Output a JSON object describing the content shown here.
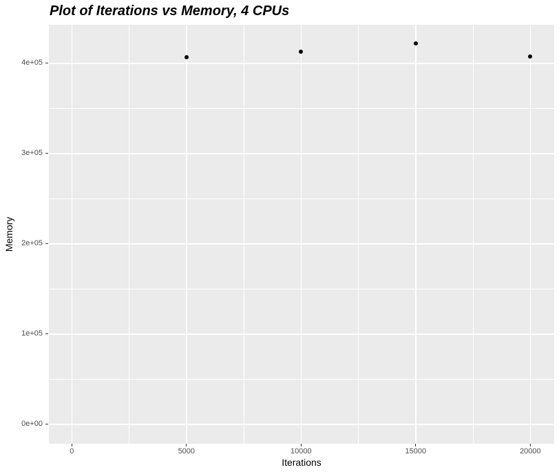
{
  "chart_data": {
    "type": "scatter",
    "title": "Plot of Iterations vs Memory, 4 CPUs",
    "xlabel": "Iterations",
    "ylabel": "Memory",
    "x_ticks": [
      {
        "value": 0,
        "label": "0"
      },
      {
        "value": 5000,
        "label": "5000"
      },
      {
        "value": 10000,
        "label": "10000"
      },
      {
        "value": 15000,
        "label": "15000"
      },
      {
        "value": 20000,
        "label": "20000"
      }
    ],
    "y_ticks": [
      {
        "value": 0,
        "label": "0e+00"
      },
      {
        "value": 100000,
        "label": "1e+05"
      },
      {
        "value": 200000,
        "label": "2e+05"
      },
      {
        "value": 300000,
        "label": "3e+05"
      },
      {
        "value": 400000,
        "label": "4e+05"
      }
    ],
    "x_minor_ticks": [
      2500,
      7500,
      12500,
      17500
    ],
    "y_minor_ticks": [
      50000,
      150000,
      250000,
      350000
    ],
    "xlim": [
      -1000,
      21040
    ],
    "ylim": [
      -21400,
      442700
    ],
    "points": [
      [
        5000,
        406500
      ],
      [
        10000,
        412800
      ],
      [
        15000,
        421900
      ],
      [
        20000,
        407500
      ]
    ],
    "grid": true,
    "legend_position": "none",
    "colors": {
      "figure_background": "#FFFFFF",
      "panel_background": "#EBEBEB",
      "grid": "#FFFFFF",
      "point": "#000000",
      "tick_label": "#4D4D4D",
      "tick_mark": "#333333",
      "axis_title": "#000000",
      "title": "#000000"
    }
  }
}
